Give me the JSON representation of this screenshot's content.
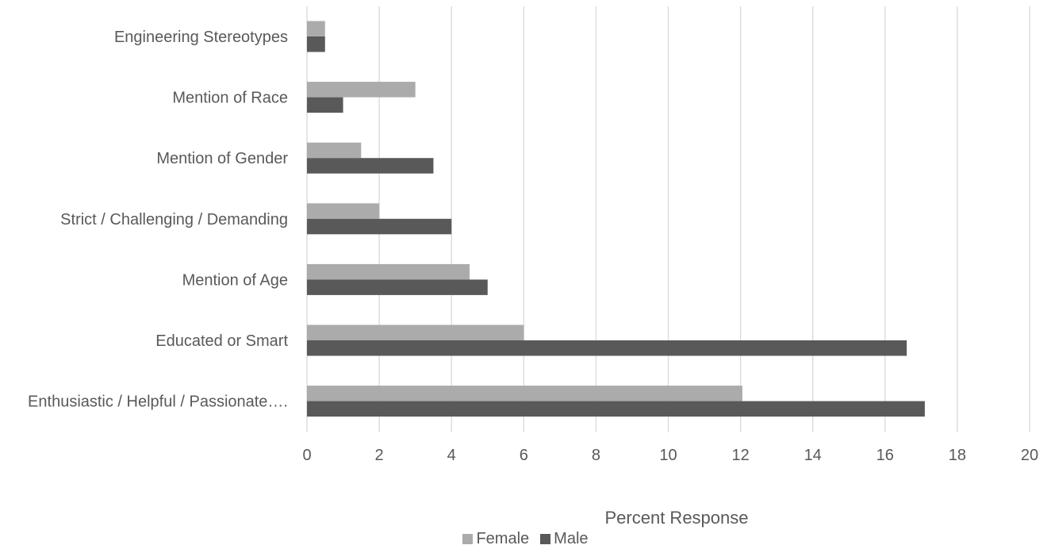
{
  "chart_data": {
    "type": "bar",
    "orientation": "horizontal",
    "title": "",
    "xlabel": "Percent Response",
    "ylabel": "",
    "xlim": [
      0,
      20
    ],
    "xticks": [
      "0",
      "2",
      "4",
      "6",
      "8",
      "10",
      "12",
      "14",
      "16",
      "18",
      "20"
    ],
    "grid": "vertical",
    "legend_position": "bottom",
    "categories": [
      "Engineering Stereotypes",
      "Mention of Race",
      "Mention of Gender",
      "Strict / Challenging / Demanding",
      "Mention of Age",
      "Educated or Smart",
      "Enthusiastic / Helpful / Passionate…."
    ],
    "series": [
      {
        "name": "Female",
        "color": "#ababab",
        "values": [
          0.5,
          3.0,
          1.5,
          2.0,
          4.5,
          6.0,
          12.05
        ]
      },
      {
        "name": "Male",
        "color": "#595959",
        "values": [
          0.5,
          1.0,
          3.5,
          4.0,
          5.0,
          16.6,
          17.1
        ]
      }
    ]
  }
}
